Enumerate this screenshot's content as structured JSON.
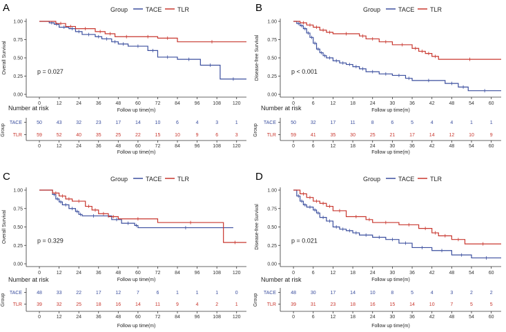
{
  "colors": {
    "tace": "#3A4E9E",
    "tlr": "#C8352C",
    "axis": "#333333"
  },
  "chart_data": [
    {
      "type": "line",
      "panel_label": "A",
      "legend_title": "Group",
      "legend": [
        "TACE",
        "TLR"
      ],
      "ylabel": "Overall Survival",
      "xlabel": "Follow up time(m)",
      "xlim": [
        -8,
        126
      ],
      "ylim": [
        0,
        1
      ],
      "xticks": [
        0,
        12,
        24,
        36,
        48,
        60,
        72,
        84,
        96,
        108,
        120
      ],
      "yticks": [
        "0.00",
        "0.25",
        "0.50",
        "0.75",
        "1.00"
      ],
      "pvalue": "p = 0.027",
      "risk_title": "Number at risk",
      "risk_group_label": "Group",
      "series": [
        {
          "name": "TACE",
          "steps": [
            [
              0,
              1
            ],
            [
              6,
              0.98
            ],
            [
              9,
              0.96
            ],
            [
              12,
              0.92
            ],
            [
              18,
              0.9
            ],
            [
              22,
              0.86
            ],
            [
              26,
              0.82
            ],
            [
              34,
              0.79
            ],
            [
              38,
              0.76
            ],
            [
              44,
              0.72
            ],
            [
              48,
              0.69
            ],
            [
              54,
              0.66
            ],
            [
              66,
              0.6
            ],
            [
              72,
              0.51
            ],
            [
              84,
              0.48
            ],
            [
              98,
              0.4
            ],
            [
              110,
              0.21
            ],
            [
              126,
              0.21
            ]
          ]
        },
        {
          "name": "TLR",
          "steps": [
            [
              0,
              1
            ],
            [
              10,
              0.97
            ],
            [
              16,
              0.93
            ],
            [
              22,
              0.9
            ],
            [
              34,
              0.86
            ],
            [
              40,
              0.83
            ],
            [
              46,
              0.79
            ],
            [
              60,
              0.79
            ],
            [
              72,
              0.77
            ],
            [
              84,
              0.72
            ],
            [
              126,
              0.72
            ]
          ]
        }
      ],
      "risk": {
        "TACE": [
          "50",
          "43",
          "32",
          "23",
          "17",
          "14",
          "10",
          "6",
          "4",
          "3",
          "1"
        ],
        "TLR": [
          "59",
          "52",
          "40",
          "35",
          "25",
          "22",
          "15",
          "10",
          "9",
          "6",
          "3"
        ]
      }
    },
    {
      "type": "line",
      "panel_label": "B",
      "legend_title": "Group",
      "legend": [
        "TACE",
        "TLR"
      ],
      "ylabel": "Disease-free Survival",
      "xlabel": "Follow up time(m)",
      "xlim": [
        -4,
        63
      ],
      "ylim": [
        0,
        1
      ],
      "xticks": [
        0,
        6,
        12,
        18,
        24,
        30,
        36,
        42,
        48,
        54,
        60
      ],
      "yticks": [
        "0.00",
        "0.25",
        "0.50",
        "0.75",
        "1.00"
      ],
      "pvalue": "p < 0.001",
      "risk_title": "Number at risk",
      "risk_group_label": "Group",
      "series": [
        {
          "name": "TACE",
          "steps": [
            [
              0,
              1
            ],
            [
              1,
              0.97
            ],
            [
              2,
              0.94
            ],
            [
              3,
              0.9
            ],
            [
              4,
              0.84
            ],
            [
              5,
              0.78
            ],
            [
              6,
              0.7
            ],
            [
              7,
              0.62
            ],
            [
              8,
              0.57
            ],
            [
              9,
              0.53
            ],
            [
              10,
              0.5
            ],
            [
              12,
              0.46
            ],
            [
              14,
              0.43
            ],
            [
              16,
              0.41
            ],
            [
              18,
              0.38
            ],
            [
              20,
              0.35
            ],
            [
              22,
              0.31
            ],
            [
              26,
              0.28
            ],
            [
              30,
              0.26
            ],
            [
              34,
              0.22
            ],
            [
              36,
              0.19
            ],
            [
              46,
              0.15
            ],
            [
              50,
              0.1
            ],
            [
              53,
              0.05
            ],
            [
              63,
              0.05
            ]
          ]
        },
        {
          "name": "TLR",
          "steps": [
            [
              0,
              1
            ],
            [
              2,
              0.98
            ],
            [
              4,
              0.95
            ],
            [
              6,
              0.92
            ],
            [
              8,
              0.88
            ],
            [
              10,
              0.85
            ],
            [
              12,
              0.83
            ],
            [
              20,
              0.8
            ],
            [
              22,
              0.76
            ],
            [
              26,
              0.72
            ],
            [
              30,
              0.68
            ],
            [
              36,
              0.63
            ],
            [
              38,
              0.59
            ],
            [
              40,
              0.56
            ],
            [
              42,
              0.52
            ],
            [
              44,
              0.48
            ],
            [
              63,
              0.48
            ]
          ]
        }
      ],
      "risk": {
        "TACE": [
          "50",
          "32",
          "17",
          "11",
          "8",
          "6",
          "5",
          "4",
          "4",
          "1",
          "1"
        ],
        "TLR": [
          "59",
          "41",
          "35",
          "30",
          "25",
          "21",
          "17",
          "14",
          "12",
          "10",
          "9"
        ]
      }
    },
    {
      "type": "line",
      "panel_label": "C",
      "legend_title": "Group",
      "legend": [
        "TACE",
        "TLR"
      ],
      "ylabel": "Overall Survival",
      "xlabel": "Follow up time(m)",
      "xlim": [
        -8,
        126
      ],
      "ylim": [
        0,
        1
      ],
      "xticks": [
        0,
        12,
        24,
        36,
        48,
        60,
        72,
        84,
        96,
        108,
        120
      ],
      "yticks": [
        "0.00",
        "0.25",
        "0.50",
        "0.75",
        "1.00"
      ],
      "pvalue": "p = 0.329",
      "risk_title": "Number at risk",
      "risk_group_label": "Group",
      "series": [
        {
          "name": "TACE",
          "steps": [
            [
              0,
              1
            ],
            [
              8,
              0.94
            ],
            [
              10,
              0.88
            ],
            [
              12,
              0.84
            ],
            [
              14,
              0.8
            ],
            [
              18,
              0.75
            ],
            [
              22,
              0.71
            ],
            [
              24,
              0.67
            ],
            [
              26,
              0.65
            ],
            [
              40,
              0.65
            ],
            [
              44,
              0.6
            ],
            [
              50,
              0.55
            ],
            [
              58,
              0.52
            ],
            [
              60,
              0.49
            ],
            [
              118,
              0.49
            ]
          ]
        },
        {
          "name": "TLR",
          "steps": [
            [
              0,
              1
            ],
            [
              8,
              0.96
            ],
            [
              12,
              0.92
            ],
            [
              16,
              0.88
            ],
            [
              20,
              0.85
            ],
            [
              28,
              0.78
            ],
            [
              32,
              0.73
            ],
            [
              36,
              0.68
            ],
            [
              42,
              0.64
            ],
            [
              48,
              0.61
            ],
            [
              72,
              0.56
            ],
            [
              112,
              0.29
            ],
            [
              126,
              0.29
            ]
          ]
        }
      ],
      "risk": {
        "TACE": [
          "48",
          "33",
          "22",
          "17",
          "12",
          "7",
          "6",
          "1",
          "1",
          "1",
          "0"
        ],
        "TLR": [
          "39",
          "32",
          "25",
          "18",
          "16",
          "14",
          "11",
          "9",
          "4",
          "2",
          "1"
        ]
      }
    },
    {
      "type": "line",
      "panel_label": "D",
      "legend_title": "Group",
      "legend": [
        "TACE",
        "TLR"
      ],
      "ylabel": "Disease-free Survival",
      "xlabel": "Follow up time(m)",
      "xlim": [
        -4,
        63
      ],
      "ylim": [
        0,
        1
      ],
      "xticks": [
        0,
        6,
        12,
        18,
        24,
        30,
        36,
        42,
        48,
        54,
        60
      ],
      "yticks": [
        "0.00",
        "0.25",
        "0.50",
        "0.75",
        "1.00"
      ],
      "pvalue": "p = 0.021",
      "risk_title": "Number at risk",
      "risk_group_label": "Group",
      "series": [
        {
          "name": "TACE",
          "steps": [
            [
              0,
              1
            ],
            [
              1,
              0.92
            ],
            [
              2,
              0.85
            ],
            [
              3,
              0.8
            ],
            [
              4,
              0.77
            ],
            [
              6,
              0.73
            ],
            [
              7,
              0.69
            ],
            [
              8,
              0.63
            ],
            [
              10,
              0.58
            ],
            [
              12,
              0.5
            ],
            [
              14,
              0.47
            ],
            [
              16,
              0.45
            ],
            [
              18,
              0.42
            ],
            [
              20,
              0.39
            ],
            [
              24,
              0.36
            ],
            [
              28,
              0.33
            ],
            [
              32,
              0.28
            ],
            [
              36,
              0.22
            ],
            [
              42,
              0.18
            ],
            [
              48,
              0.12
            ],
            [
              54,
              0.08
            ],
            [
              63,
              0.08
            ]
          ]
        },
        {
          "name": "TLR",
          "steps": [
            [
              0,
              1
            ],
            [
              2,
              0.95
            ],
            [
              4,
              0.9
            ],
            [
              6,
              0.85
            ],
            [
              8,
              0.82
            ],
            [
              10,
              0.78
            ],
            [
              12,
              0.72
            ],
            [
              16,
              0.64
            ],
            [
              22,
              0.6
            ],
            [
              24,
              0.56
            ],
            [
              32,
              0.53
            ],
            [
              38,
              0.48
            ],
            [
              42,
              0.42
            ],
            [
              44,
              0.38
            ],
            [
              48,
              0.33
            ],
            [
              52,
              0.27
            ],
            [
              63,
              0.27
            ]
          ]
        }
      ],
      "risk": {
        "TACE": [
          "48",
          "30",
          "17",
          "14",
          "10",
          "8",
          "5",
          "4",
          "3",
          "2",
          "2"
        ],
        "TLR": [
          "39",
          "31",
          "23",
          "18",
          "16",
          "15",
          "14",
          "10",
          "7",
          "5",
          "5"
        ]
      }
    }
  ]
}
